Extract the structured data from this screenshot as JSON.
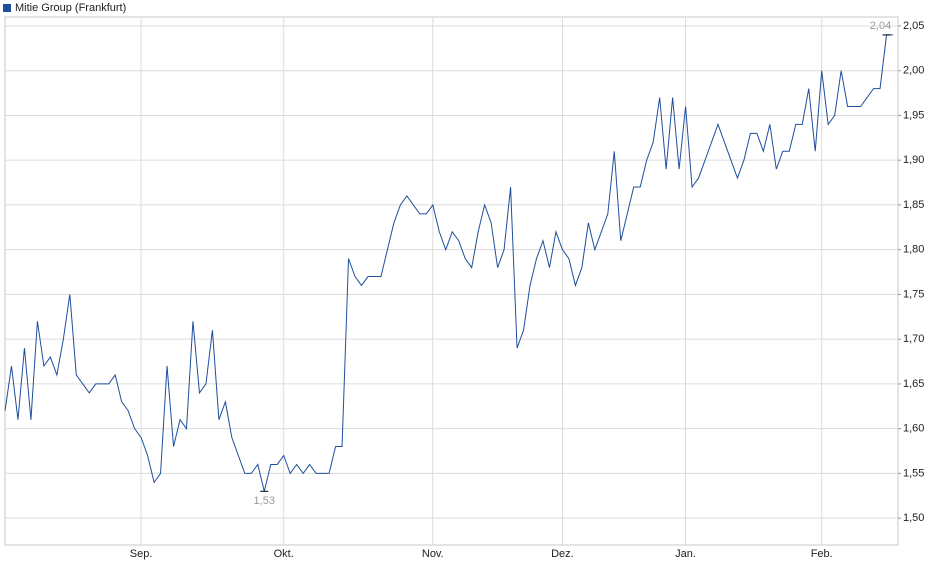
{
  "chart_data": {
    "type": "line",
    "series": [
      {
        "name": "Mitie Group (Frankfurt)",
        "color": "#1f4e9c",
        "values": [
          1.62,
          1.67,
          1.61,
          1.69,
          1.61,
          1.72,
          1.67,
          1.68,
          1.66,
          1.7,
          1.75,
          1.66,
          1.65,
          1.64,
          1.65,
          1.65,
          1.65,
          1.66,
          1.63,
          1.62,
          1.6,
          1.59,
          1.57,
          1.54,
          1.55,
          1.67,
          1.58,
          1.61,
          1.6,
          1.72,
          1.64,
          1.65,
          1.71,
          1.61,
          1.63,
          1.59,
          1.57,
          1.55,
          1.55,
          1.56,
          1.53,
          1.56,
          1.56,
          1.57,
          1.55,
          1.56,
          1.55,
          1.56,
          1.55,
          1.55,
          1.55,
          1.58,
          1.58,
          1.79,
          1.77,
          1.76,
          1.77,
          1.77,
          1.77,
          1.8,
          1.83,
          1.85,
          1.86,
          1.85,
          1.84,
          1.84,
          1.85,
          1.82,
          1.8,
          1.82,
          1.81,
          1.79,
          1.78,
          1.82,
          1.85,
          1.83,
          1.78,
          1.8,
          1.87,
          1.69,
          1.71,
          1.76,
          1.79,
          1.81,
          1.78,
          1.82,
          1.8,
          1.79,
          1.76,
          1.78,
          1.83,
          1.8,
          1.82,
          1.84,
          1.91,
          1.81,
          1.84,
          1.87,
          1.87,
          1.9,
          1.92,
          1.97,
          1.89,
          1.97,
          1.89,
          1.96,
          1.87,
          1.88,
          1.9,
          1.92,
          1.94,
          1.92,
          1.9,
          1.88,
          1.9,
          1.93,
          1.93,
          1.91,
          1.94,
          1.89,
          1.91,
          1.91,
          1.94,
          1.94,
          1.98,
          1.91,
          2.0,
          1.94,
          1.95,
          2.0,
          1.96,
          1.96,
          1.96,
          1.97,
          1.98,
          1.98,
          2.04,
          2.04
        ]
      }
    ],
    "categories": [
      null,
      null,
      null,
      null,
      null,
      null,
      null,
      null,
      null,
      null,
      null,
      null,
      null,
      null,
      null,
      null,
      null,
      null,
      null,
      null,
      null,
      "Sep.",
      null,
      null,
      null,
      null,
      null,
      null,
      null,
      null,
      null,
      null,
      null,
      null,
      null,
      null,
      null,
      null,
      null,
      null,
      null,
      null,
      null,
      "Okt.",
      null,
      null,
      null,
      null,
      null,
      null,
      null,
      null,
      null,
      null,
      null,
      null,
      null,
      null,
      null,
      null,
      null,
      null,
      null,
      null,
      null,
      null,
      "Nov.",
      null,
      null,
      null,
      null,
      null,
      null,
      null,
      null,
      null,
      null,
      null,
      null,
      null,
      null,
      null,
      null,
      null,
      null,
      null,
      "Dez.",
      null,
      null,
      null,
      null,
      null,
      null,
      null,
      null,
      null,
      null,
      null,
      null,
      null,
      null,
      null,
      null,
      null,
      null,
      "Jan.",
      null,
      null,
      null,
      null,
      null,
      null,
      null,
      null,
      null,
      null,
      null,
      null,
      null,
      null,
      null,
      null,
      null,
      null,
      null,
      null,
      "Feb.",
      null,
      null,
      null,
      null,
      null,
      null,
      null,
      null,
      null,
      null,
      null
    ],
    "ylim": [
      1.47,
      2.06
    ],
    "yticks": [
      {
        "value": 1.5,
        "label": "1,50"
      },
      {
        "value": 1.55,
        "label": "1,55"
      },
      {
        "value": 1.6,
        "label": "1,60"
      },
      {
        "value": 1.65,
        "label": "1,65"
      },
      {
        "value": 1.7,
        "label": "1,70"
      },
      {
        "value": 1.75,
        "label": "1,75"
      },
      {
        "value": 1.8,
        "label": "1,80"
      },
      {
        "value": 1.85,
        "label": "1,85"
      },
      {
        "value": 1.9,
        "label": "1,90"
      },
      {
        "value": 1.95,
        "label": "1,95"
      },
      {
        "value": 2.0,
        "label": "2,00"
      },
      {
        "value": 2.05,
        "label": "2,05"
      }
    ],
    "annotations": [
      {
        "value": 1.53,
        "label": "1,53"
      },
      {
        "value": 2.04,
        "label": "2,04"
      }
    ],
    "grid": true
  }
}
